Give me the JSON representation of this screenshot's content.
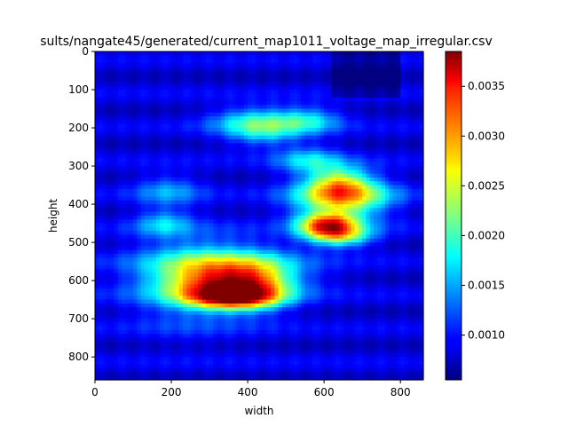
{
  "chart_data": {
    "type": "heatmap",
    "title": "sults/nangate45/generated/current_map1011_voltage_map_irregular.csv",
    "xlabel": "width",
    "ylabel": "height",
    "xlim": [
      0,
      860
    ],
    "ylim": [
      860,
      0
    ],
    "xticks": [
      0,
      200,
      400,
      600,
      800
    ],
    "yticks": [
      0,
      100,
      200,
      300,
      400,
      500,
      600,
      700,
      800
    ],
    "colormap": "jet",
    "colorbar": {
      "min": 0.00055,
      "max": 0.00385,
      "ticks": [
        "0.0010",
        "0.0015",
        "0.0020",
        "0.0025",
        "0.0030",
        "0.0035"
      ],
      "tick_values": [
        0.001,
        0.0015,
        0.002,
        0.0025,
        0.003,
        0.0035
      ]
    },
    "background_level": 0.00085,
    "hotspots": [
      {
        "x": 420,
        "y": 180,
        "sx": 80,
        "sy": 25,
        "value": 0.0009
      },
      {
        "x": 560,
        "y": 180,
        "sx": 60,
        "sy": 25,
        "value": 0.0008
      },
      {
        "x": 440,
        "y": 215,
        "sx": 70,
        "sy": 25,
        "value": 0.0007
      },
      {
        "x": 560,
        "y": 285,
        "sx": 60,
        "sy": 25,
        "value": 0.0008
      },
      {
        "x": 640,
        "y": 340,
        "sx": 60,
        "sy": 30,
        "value": 0.0013
      },
      {
        "x": 650,
        "y": 375,
        "sx": 90,
        "sy": 30,
        "value": 0.0012
      },
      {
        "x": 640,
        "y": 410,
        "sx": 80,
        "sy": 35,
        "value": 0.0009
      },
      {
        "x": 610,
        "y": 455,
        "sx": 55,
        "sy": 22,
        "value": 0.0021
      },
      {
        "x": 640,
        "y": 485,
        "sx": 60,
        "sy": 20,
        "value": 0.0013
      },
      {
        "x": 190,
        "y": 365,
        "sx": 60,
        "sy": 30,
        "value": 0.0006
      },
      {
        "x": 180,
        "y": 450,
        "sx": 50,
        "sy": 25,
        "value": 0.0007
      },
      {
        "x": 350,
        "y": 570,
        "sx": 130,
        "sy": 40,
        "value": 0.0011
      },
      {
        "x": 360,
        "y": 615,
        "sx": 100,
        "sy": 35,
        "value": 0.0016
      },
      {
        "x": 360,
        "y": 645,
        "sx": 80,
        "sy": 20,
        "value": 0.0018
      },
      {
        "x": 250,
        "y": 600,
        "sx": 110,
        "sy": 80,
        "value": 0.0008
      },
      {
        "x": 430,
        "y": 610,
        "sx": 60,
        "sy": 50,
        "value": 0.0006
      }
    ]
  }
}
